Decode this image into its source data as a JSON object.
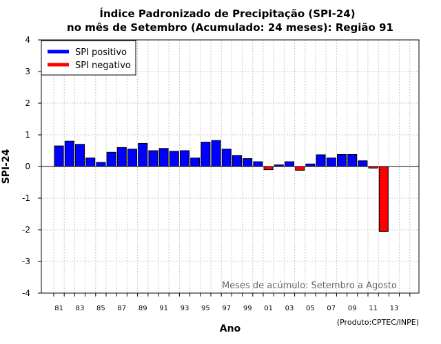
{
  "chart_data": {
    "type": "bar",
    "title": [
      "Índice Padronizado de Precipitação (SPI-24)",
      "no mês de Setembro (Acumulado: 24 meses): Região 91"
    ],
    "xlabel": "Ano",
    "ylabel": "SPI-24",
    "ylim": [
      -4,
      4
    ],
    "yticks": [
      -4,
      -3,
      -2,
      -1,
      0,
      1,
      2,
      3,
      4
    ],
    "xtick_labels": [
      "81",
      "83",
      "85",
      "87",
      "89",
      "91",
      "93",
      "95",
      "97",
      "99",
      "01",
      "03",
      "05",
      "07",
      "09",
      "11",
      "13"
    ],
    "grid": true,
    "categories": [
      "1981",
      "1982",
      "1983",
      "1984",
      "1985",
      "1986",
      "1987",
      "1988",
      "1989",
      "1990",
      "1991",
      "1992",
      "1993",
      "1994",
      "1995",
      "1996",
      "1997",
      "1998",
      "1999",
      "2000",
      "2001",
      "2002",
      "2003",
      "2004",
      "2005",
      "2006",
      "2007",
      "2008",
      "2009",
      "2010",
      "2011",
      "2012"
    ],
    "values": [
      0.65,
      0.8,
      0.7,
      0.27,
      0.13,
      0.45,
      0.6,
      0.55,
      0.73,
      0.5,
      0.57,
      0.48,
      0.5,
      0.27,
      0.77,
      0.82,
      0.55,
      0.35,
      0.25,
      0.15,
      -0.1,
      0.05,
      0.15,
      -0.12,
      0.08,
      0.37,
      0.27,
      0.38,
      0.38,
      0.18,
      -0.05,
      -2.05
    ],
    "legend": {
      "position": "top-left",
      "entries": [
        {
          "label": "SPI positivo",
          "color": "#0000ff"
        },
        {
          "label": "SPI negativo",
          "color": "#ff0000"
        }
      ]
    },
    "annotation": "Meses de acúmulo: Setembro a Agosto",
    "credit": "(Produto:CPTEC/INPE)",
    "colors": {
      "positive": "#0000ff",
      "negative": "#ff0000",
      "grid": "#c8c8c8"
    }
  }
}
